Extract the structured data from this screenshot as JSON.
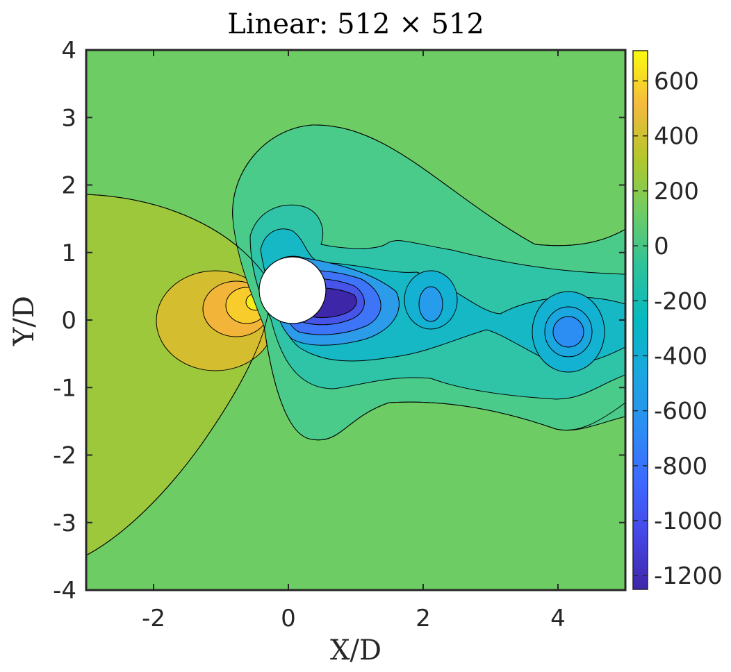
{
  "chart_data": {
    "type": "heatmap",
    "subtype": "filled-contour",
    "title": "Linear: 512 × 512",
    "xlabel": "X/D",
    "ylabel": "Y/D",
    "xlim": [
      -3,
      5
    ],
    "ylim": [
      -4,
      4
    ],
    "xticks": [
      -2,
      0,
      2,
      4
    ],
    "xtick_labels": [
      "-2",
      "0",
      "2",
      "4"
    ],
    "yticks": [
      4,
      3,
      2,
      1,
      0,
      -1,
      -2,
      -3,
      -4
    ],
    "ytick_labels": [
      "4",
      "3",
      "2",
      "1",
      "0",
      "-1",
      "-2",
      "-3",
      "-4"
    ],
    "colorbar": {
      "colormap": "parula",
      "range": [
        -1250,
        710
      ],
      "ticks": [
        600,
        400,
        200,
        0,
        -200,
        -400,
        -600,
        -800,
        -1000,
        -1200
      ],
      "tick_labels": [
        "600",
        "400",
        "200",
        "0",
        "-200",
        "-400",
        "-600",
        "-800",
        "-1000",
        "-1200"
      ]
    },
    "background_level": 0,
    "cylinder": {
      "center": [
        0.05,
        0.45
      ],
      "diameter": 1.0
    },
    "features": [
      {
        "kind": "max",
        "x": -0.45,
        "y": 0.25,
        "value": 700
      },
      {
        "kind": "min",
        "x": 0.95,
        "y": 0.22,
        "value": -1250
      },
      {
        "kind": "min",
        "x": 2.15,
        "y": 0.2,
        "value": -520
      },
      {
        "kind": "min",
        "x": 4.15,
        "y": -0.2,
        "value": -560
      }
    ],
    "grid": false
  },
  "colors": {
    "background_field": "#6ecc64",
    "contour_line": "#000000",
    "axes_frame": "#262626"
  }
}
